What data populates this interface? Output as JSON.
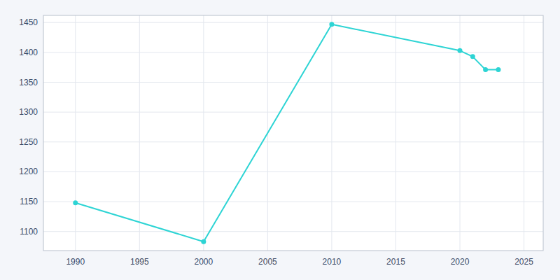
{
  "chart_data": {
    "type": "line",
    "x": [
      1990,
      2000,
      2010,
      2020,
      2021,
      2022,
      2023
    ],
    "values": [
      1148,
      1083,
      1447,
      1403,
      1393,
      1371,
      1371
    ],
    "color": "#2dd4d4",
    "marker": "circle",
    "xlim": [
      1987.5,
      2026.5
    ],
    "ylim": [
      1068,
      1462
    ],
    "xticks": [
      1990,
      1995,
      2000,
      2005,
      2010,
      2015,
      2020,
      2025
    ],
    "yticks": [
      1100,
      1150,
      1200,
      1250,
      1300,
      1350,
      1400,
      1450
    ],
    "grid": true
  }
}
